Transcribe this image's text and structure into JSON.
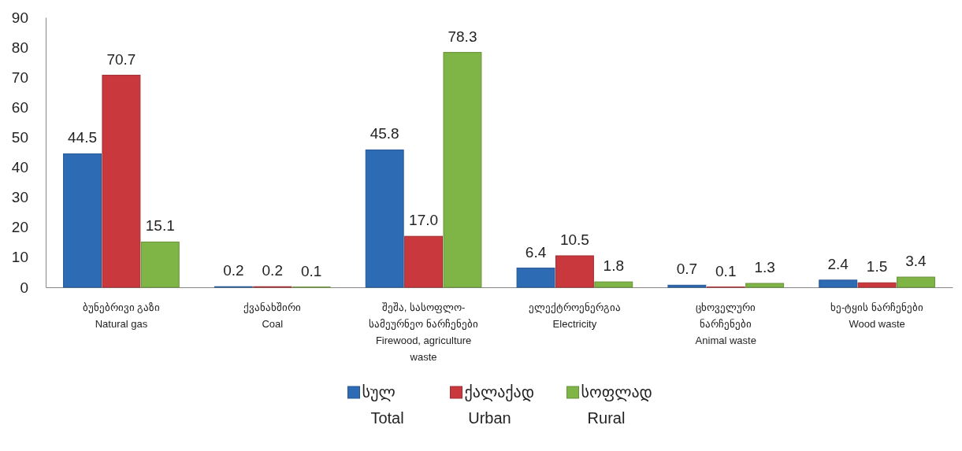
{
  "chart_data": {
    "type": "bar",
    "categories": [
      "ბუნებრივი გაზი\nNatural gas",
      "ქვანახშირი\nCoal",
      "შეშა, სასოფლო-\nსამეურნეო ნარჩენები\nFirewood, agriculture\nwaste",
      "ელექტროენერგია\nElectricity",
      "ცხოველური\nნარჩენები\nAnimal waste",
      "ხე-ტყის ნარჩენები\nWood waste"
    ],
    "series": [
      {
        "name": "სულ\nTotal",
        "color": "#2e6bb5",
        "values": [
          44.5,
          0.2,
          45.8,
          6.4,
          0.7,
          2.4
        ]
      },
      {
        "name": "ქალაქად\nUrban",
        "color": "#c8383c",
        "values": [
          70.7,
          0.2,
          17.0,
          10.5,
          0.1,
          1.5
        ]
      },
      {
        "name": "სოფლად\nRural",
        "color": "#7fb446",
        "values": [
          15.1,
          0.1,
          78.3,
          1.8,
          1.3,
          3.4
        ]
      }
    ],
    "value_labels": [
      [
        "44.5",
        "0.2",
        "45.8",
        "6.4",
        "0.7",
        "2.4"
      ],
      [
        "70.7",
        "0.2",
        "17.0",
        "10.5",
        "0.1",
        "1.5"
      ],
      [
        "15.1",
        "0.1",
        "78.3",
        "1.8",
        "1.3",
        "3.4"
      ]
    ],
    "ylim": [
      0,
      90
    ],
    "yticks": [
      0,
      10,
      20,
      30,
      40,
      50,
      60,
      70,
      80,
      90
    ],
    "grid": false,
    "legend": "bottom"
  }
}
